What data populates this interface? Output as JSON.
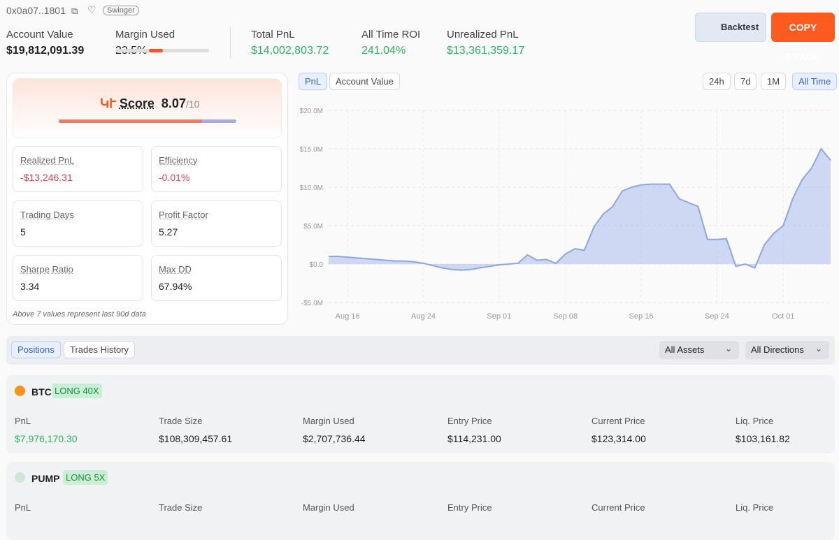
{
  "header": {
    "address": "0x0a07..1801",
    "tag": "Swinger"
  },
  "stats": [
    {
      "label": "Account Value",
      "value": "$19,812,091.39"
    },
    {
      "label": "Margin Used",
      "value": "23.5%"
    },
    {
      "label": "Total PnL",
      "value": "$14,002,803.72"
    },
    {
      "label": "All Time ROI",
      "value": "241.04%"
    },
    {
      "label": "Unrealized PnL",
      "value": "$13,361,359.17"
    }
  ],
  "buttons": {
    "backtest": "Backtest",
    "copy": "COPY TRADE"
  },
  "score": {
    "label": "Score",
    "value": "8.07",
    "max": "/10"
  },
  "metrics": [
    {
      "label": "Realized PnL",
      "value": "-$13,246.31"
    },
    {
      "label": "Efficiency",
      "value": "-0.01%"
    },
    {
      "label": "Trading Days",
      "value": "5"
    },
    {
      "label": "Profit Factor",
      "value": "5.27"
    },
    {
      "label": "Sharpe Ratio",
      "value": "3.34"
    },
    {
      "label": "Max DD",
      "value": "67.94%"
    }
  ],
  "metrics_note": "Above 7 values represent last 90d data",
  "chart_tabs": [
    "PnL",
    "Account Value"
  ],
  "chart_ranges": [
    "24h",
    "7d",
    "1M",
    "All Time"
  ],
  "chart_data": {
    "type": "area",
    "color": "#8fa6e6",
    "grid": true,
    "categories": [
      null,
      null,
      "Aug 16",
      null,
      null,
      null,
      null,
      null,
      null,
      null,
      "Aug 24",
      null,
      null,
      null,
      null,
      null,
      null,
      null,
      "Sep 01",
      null,
      null,
      null,
      null,
      null,
      null,
      "Sep 08",
      null,
      null,
      null,
      null,
      null,
      null,
      null,
      "Sep 16",
      null,
      null,
      null,
      null,
      null,
      null,
      null,
      "Sep 24",
      null,
      null,
      null,
      null,
      null,
      null,
      "Oct 01",
      null,
      null,
      null,
      null,
      null
    ],
    "values": [
      1.0,
      1.0,
      0.9,
      0.8,
      0.7,
      0.6,
      0.5,
      0.4,
      0.4,
      0.3,
      0.1,
      -0.2,
      -0.5,
      -0.7,
      -0.8,
      -0.7,
      -0.5,
      -0.3,
      -0.1,
      0.0,
      0.1,
      1.2,
      0.5,
      0.6,
      0.1,
      1.3,
      2.0,
      1.8,
      4.8,
      6.5,
      7.5,
      9.5,
      10.0,
      10.3,
      10.4,
      10.4,
      10.4,
      8.5,
      8.0,
      7.5,
      3.2,
      3.2,
      3.3,
      -0.3,
      0.0,
      -0.5,
      2.5,
      4.0,
      5.0,
      8.5,
      11.0,
      12.5,
      15.0,
      13.5
    ],
    "ylim": [
      -5,
      20
    ],
    "yticks": [
      {
        "value": -5,
        "label": "-$5.0M"
      },
      {
        "value": 0,
        "label": "$0.0"
      },
      {
        "value": 5,
        "label": "$5.0M"
      },
      {
        "value": 10,
        "label": "$10.0M"
      },
      {
        "value": 15,
        "label": "$15.0M"
      },
      {
        "value": 20,
        "label": "$20.0M"
      }
    ]
  },
  "position_tabs": [
    "Positions",
    "Trades History"
  ],
  "filters": [
    "All Assets",
    "All Directions"
  ],
  "positions": [
    {
      "symbol": "BTC",
      "side": "LONG 40X",
      "fields": [
        {
          "label": "PnL",
          "value": "$7,976,170.30"
        },
        {
          "label": "Trade Size",
          "value": "$108,309,457.61"
        },
        {
          "label": "Margin Used",
          "value": "$2,707,736.44"
        },
        {
          "label": "Entry Price",
          "value": "$114,231.00"
        },
        {
          "label": "Current Price",
          "value": "$123,314.00"
        },
        {
          "label": "Liq. Price",
          "value": "$103,161.82"
        }
      ]
    },
    {
      "symbol": "PUMP",
      "side": "LONG 5X",
      "fields": [
        {
          "label": "PnL"
        },
        {
          "label": "Trade Size"
        },
        {
          "label": "Margin Used"
        },
        {
          "label": "Entry Price"
        },
        {
          "label": "Current Price"
        },
        {
          "label": "Liq. Price"
        }
      ]
    }
  ]
}
